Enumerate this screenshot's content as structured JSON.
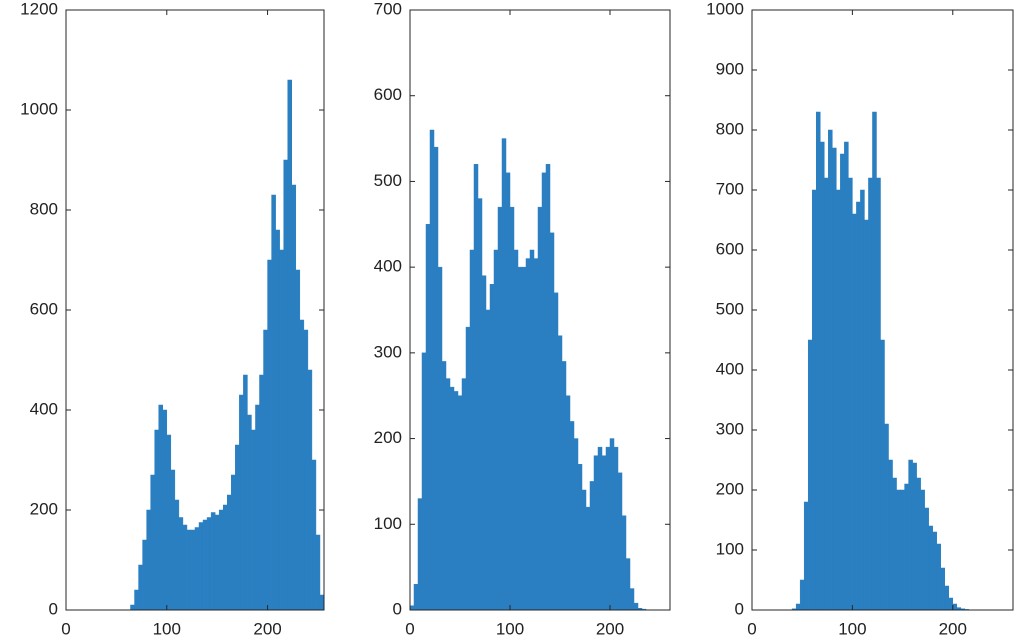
{
  "chart_data": [
    {
      "type": "histogram",
      "color": "#2a7fc1",
      "bins": [
        64,
        68,
        72,
        76,
        80,
        84,
        88,
        92,
        96,
        100,
        104,
        108,
        112,
        116,
        120,
        124,
        128,
        132,
        136,
        140,
        144,
        148,
        152,
        156,
        160,
        164,
        168,
        172,
        176,
        180,
        184,
        188,
        192,
        196,
        200,
        204,
        208,
        212,
        216,
        220,
        224,
        228,
        232,
        236,
        240,
        244,
        248,
        252,
        256
      ],
      "counts": [
        10,
        40,
        90,
        140,
        200,
        270,
        360,
        410,
        400,
        350,
        280,
        220,
        185,
        170,
        160,
        160,
        165,
        175,
        180,
        185,
        195,
        190,
        200,
        210,
        230,
        270,
        330,
        430,
        470,
        390,
        360,
        410,
        470,
        560,
        700,
        830,
        760,
        720,
        900,
        1060,
        850,
        680,
        580,
        560,
        480,
        300,
        150,
        30
      ],
      "xlim": [
        0,
        256
      ],
      "xticks": [
        0,
        100,
        200
      ],
      "ylim": [
        0,
        1200
      ],
      "yticks": [
        0,
        200,
        400,
        600,
        800,
        1000,
        1200
      ]
    },
    {
      "type": "histogram",
      "color": "#2a7fc1",
      "bins": [
        0,
        4,
        8,
        12,
        16,
        20,
        24,
        28,
        32,
        36,
        40,
        44,
        48,
        52,
        56,
        60,
        64,
        68,
        72,
        76,
        80,
        84,
        88,
        92,
        96,
        100,
        104,
        108,
        112,
        116,
        120,
        124,
        128,
        132,
        136,
        140,
        144,
        148,
        152,
        156,
        160,
        164,
        168,
        172,
        176,
        180,
        184,
        188,
        192,
        196,
        200,
        204,
        208,
        212,
        216,
        220,
        224,
        228,
        232,
        236,
        240
      ],
      "counts": [
        5,
        30,
        130,
        300,
        450,
        560,
        540,
        400,
        290,
        270,
        260,
        255,
        250,
        270,
        330,
        420,
        520,
        480,
        390,
        350,
        380,
        420,
        470,
        550,
        510,
        470,
        420,
        400,
        400,
        410,
        420,
        410,
        470,
        510,
        520,
        440,
        370,
        320,
        290,
        250,
        220,
        200,
        170,
        140,
        120,
        150,
        180,
        190,
        180,
        190,
        200,
        190,
        160,
        110,
        60,
        25,
        8,
        2,
        1,
        0
      ],
      "xlim": [
        0,
        260
      ],
      "xticks": [
        0,
        100,
        200
      ],
      "ylim": [
        0,
        700
      ],
      "yticks": [
        0,
        100,
        200,
        300,
        400,
        500,
        600,
        700
      ]
    },
    {
      "type": "histogram",
      "color": "#2a7fc1",
      "bins": [
        40,
        44,
        48,
        52,
        56,
        60,
        64,
        68,
        72,
        76,
        80,
        84,
        88,
        92,
        96,
        100,
        104,
        108,
        112,
        116,
        120,
        124,
        128,
        132,
        136,
        140,
        144,
        148,
        152,
        156,
        160,
        164,
        168,
        172,
        176,
        180,
        184,
        188,
        192,
        196,
        200,
        204,
        208,
        212,
        216,
        220
      ],
      "counts": [
        2,
        10,
        50,
        180,
        450,
        700,
        830,
        780,
        720,
        800,
        770,
        700,
        760,
        780,
        720,
        660,
        680,
        700,
        650,
        720,
        830,
        720,
        450,
        310,
        250,
        220,
        200,
        200,
        210,
        250,
        245,
        220,
        200,
        170,
        140,
        130,
        110,
        70,
        40,
        20,
        10,
        4,
        2,
        1,
        0
      ],
      "xlim": [
        0,
        260
      ],
      "xticks": [
        0,
        100,
        200
      ],
      "ylim": [
        0,
        1000
      ],
      "yticks": [
        0,
        100,
        200,
        300,
        400,
        500,
        600,
        700,
        800,
        900,
        1000
      ]
    }
  ]
}
